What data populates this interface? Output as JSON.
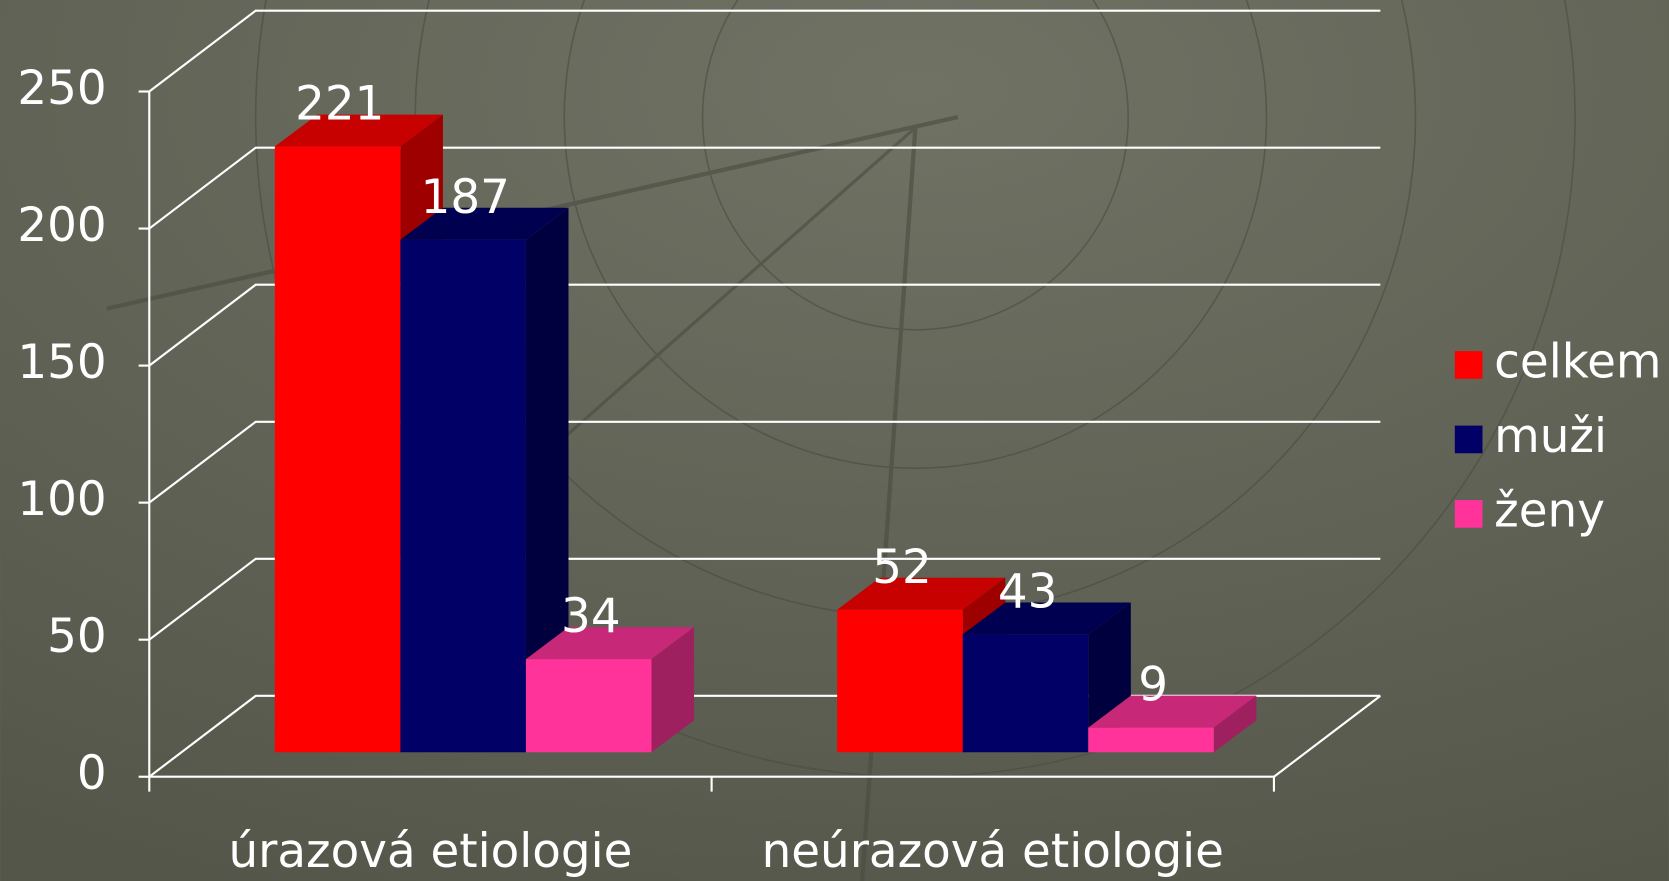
{
  "chart_data": {
    "type": "bar3d",
    "categories": [
      "úrazová etiologie",
      "neúrazová etiologie"
    ],
    "series": [
      {
        "name": "celkem",
        "color": "#ff0000",
        "values": [
          221,
          52
        ]
      },
      {
        "name": "muži",
        "color": "#000066",
        "values": [
          187,
          43
        ]
      },
      {
        "name": "ženy",
        "color": "#ff3399",
        "values": [
          34,
          9
        ]
      }
    ],
    "ylim": [
      0,
      250
    ],
    "yticks": [
      0,
      50,
      100,
      150,
      200,
      250
    ],
    "grid": true,
    "legend": "right"
  }
}
